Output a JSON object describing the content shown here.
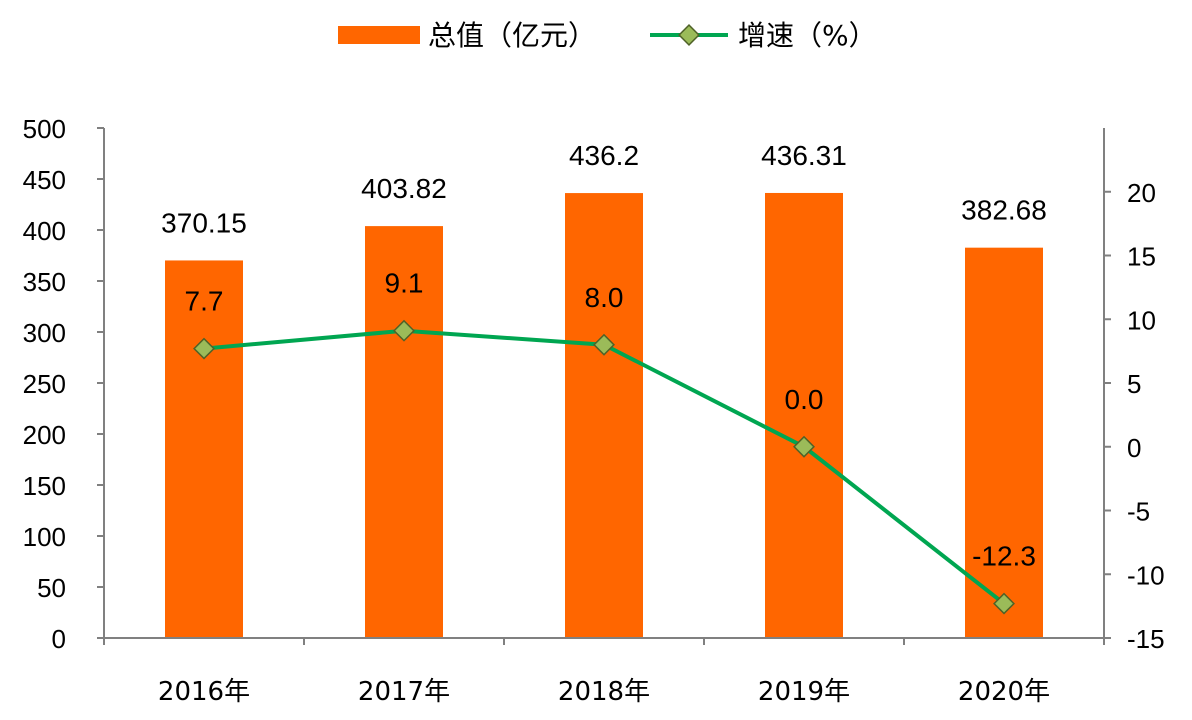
{
  "chart_data": {
    "type": "bar+line",
    "categories": [
      "2016年",
      "2017年",
      "2018年",
      "2019年",
      "2020年"
    ],
    "series": [
      {
        "name": "总值（亿元）",
        "type": "bar",
        "axis": "left",
        "values": [
          370.15,
          403.82,
          436.2,
          436.31,
          382.68
        ],
        "labels": [
          "370.15",
          "403.82",
          "436.2",
          "436.31",
          "382.68"
        ]
      },
      {
        "name": "增速（%）",
        "type": "line",
        "axis": "right",
        "values": [
          7.7,
          9.1,
          8.0,
          0.0,
          -12.3
        ],
        "labels": [
          "7.7",
          "9.1",
          "8.0",
          "0.0",
          "-12.3"
        ]
      }
    ],
    "y_left": {
      "min": 0,
      "max": 500,
      "step": 50,
      "ticks": [
        "0",
        "50",
        "100",
        "150",
        "200",
        "250",
        "300",
        "350",
        "400",
        "450",
        "500"
      ]
    },
    "y_right": {
      "min": -15,
      "max": 25,
      "step": 5,
      "ticks": [
        "-15",
        "-10",
        "-5",
        "0",
        "5",
        "10",
        "15",
        "20"
      ]
    },
    "legend_position": "top-center",
    "grid": false,
    "colors": {
      "bar": "#FF6600",
      "line": "#00A651",
      "marker": "#9BBB59",
      "marker_edge": "#4F6228",
      "axis": "#808080"
    }
  }
}
